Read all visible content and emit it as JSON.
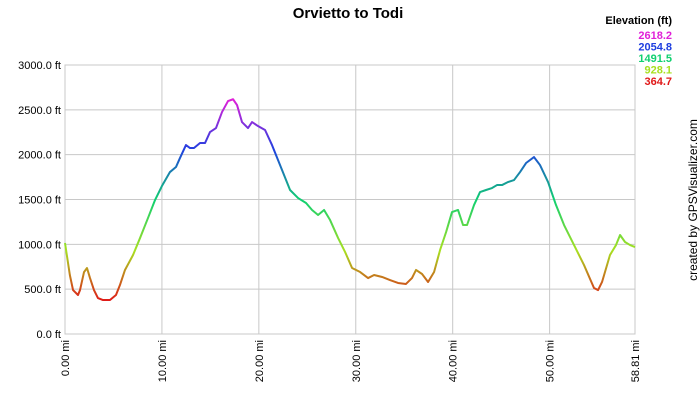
{
  "chart_data": {
    "type": "line",
    "title": "Orvietto to Todi",
    "legend_title": "Elevation (ft)",
    "legend": [
      {
        "value": 2618.2,
        "color": "#e020d8"
      },
      {
        "value": 2054.8,
        "color": "#2040e0"
      },
      {
        "value": 1491.5,
        "color": "#10d070"
      },
      {
        "value": 928.1,
        "color": "#a8e020"
      },
      {
        "value": 364.7,
        "color": "#e01818"
      }
    ],
    "credit": "created by GPSVisualizer.com",
    "xlim": [
      0,
      58.81
    ],
    "ylim": [
      0,
      3000
    ],
    "xticks": [
      {
        "value": 0,
        "label": "0.00 mi"
      },
      {
        "value": 10,
        "label": "10.00 mi"
      },
      {
        "value": 20,
        "label": "20.00 mi"
      },
      {
        "value": 30,
        "label": "30.00 mi"
      },
      {
        "value": 40,
        "label": "40.00 mi"
      },
      {
        "value": 50,
        "label": "50.00 mi"
      },
      {
        "value": 58.81,
        "label": "58.81 mi"
      }
    ],
    "yticks": [
      {
        "value": 0,
        "label": "0.0 ft"
      },
      {
        "value": 500,
        "label": "500.0 ft"
      },
      {
        "value": 1000,
        "label": "1000.0 ft"
      },
      {
        "value": 1500,
        "label": "1500.0 ft"
      },
      {
        "value": 2000,
        "label": "2000.0 ft"
      },
      {
        "value": 2500,
        "label": "2500.0 ft"
      },
      {
        "value": 3000,
        "label": "3000.0 ft"
      }
    ],
    "grid": true,
    "x": [
      0,
      0.5,
      0.83,
      1.34,
      1.55,
      1.96,
      2.27,
      2.58,
      2.99,
      3.4,
      3.92,
      4.64,
      5.26,
      5.67,
      6.19,
      7.02,
      7.74,
      8.56,
      9.29,
      10.0,
      10.83,
      11.45,
      11.86,
      12.48,
      12.9,
      13.31,
      13.93,
      14.45,
      14.96,
      15.58,
      16.2,
      16.82,
      17.34,
      17.75,
      18.26,
      18.88,
      19.3,
      19.91,
      20.64,
      21.36,
      22.19,
      23.22,
      24.05,
      24.87,
      25.49,
      26.11,
      26.73,
      27.35,
      28.18,
      28.9,
      29.62,
      30.45,
      31.27,
      31.89,
      32.72,
      33.53,
      34.36,
      35.18,
      35.8,
      36.22,
      36.84,
      37.46,
      38.08,
      38.7,
      39.32,
      39.93,
      40.55,
      41.07,
      41.48,
      42.2,
      42.82,
      43.44,
      44.06,
      44.57,
      45.09,
      45.71,
      46.33,
      46.95,
      47.57,
      48.39,
      49.01,
      49.84,
      50.66,
      51.49,
      52.52,
      53.55,
      54.58,
      55.0,
      55.41,
      56.23,
      56.85,
      57.27,
      57.78,
      58.3,
      58.81
    ],
    "values": [
      1015,
      658,
      490,
      435,
      490,
      690,
      736,
      624,
      490,
      401,
      379,
      379,
      435,
      546,
      714,
      881,
      1070,
      1293,
      1494,
      1650,
      1806,
      1862,
      1962,
      2107,
      2074,
      2074,
      2130,
      2130,
      2252,
      2297,
      2475,
      2598,
      2618,
      2553,
      2364,
      2297,
      2364,
      2319,
      2275,
      2107,
      1884,
      1606,
      1516,
      1461,
      1383,
      1327,
      1383,
      1271,
      1070,
      914,
      736,
      691,
      624,
      658,
      636,
      602,
      569,
      558,
      624,
      714,
      669,
      580,
      691,
      937,
      1137,
      1360,
      1383,
      1215,
      1215,
      1438,
      1583,
      1606,
      1628,
      1661,
      1661,
      1695,
      1717,
      1806,
      1907,
      1973,
      1884,
      1695,
      1438,
      1215,
      992,
      769,
      513,
      490,
      580,
      881,
      992,
      1104,
      1026,
      992,
      970
    ]
  }
}
